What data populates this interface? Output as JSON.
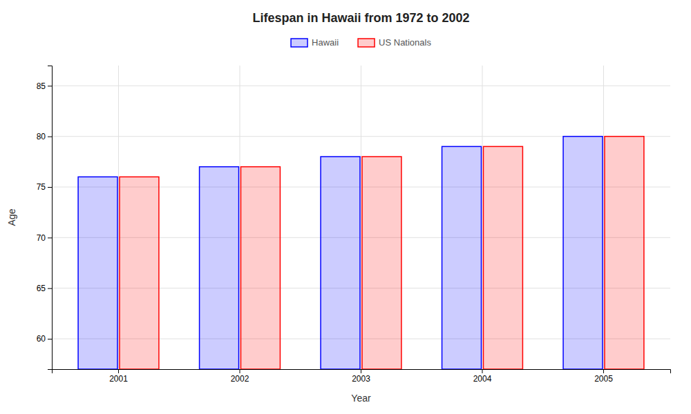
{
  "chart_data": {
    "type": "bar",
    "title": "Lifespan in Hawaii from 1972 to 2002",
    "x_label": "Year",
    "y_label": "Age",
    "categories": [
      "2001",
      "2002",
      "2003",
      "2004",
      "2005"
    ],
    "series": [
      {
        "name": "Hawaii",
        "color": "#0000ff",
        "values": [
          76,
          77,
          78,
          79,
          80
        ]
      },
      {
        "name": "US Nationals",
        "color": "#ff0000",
        "values": [
          76,
          77,
          78,
          79,
          80
        ]
      }
    ],
    "ylim": [
      57,
      87
    ],
    "yticks": [
      60,
      65,
      70,
      75,
      80,
      85
    ],
    "grid": true,
    "legend": "top"
  }
}
